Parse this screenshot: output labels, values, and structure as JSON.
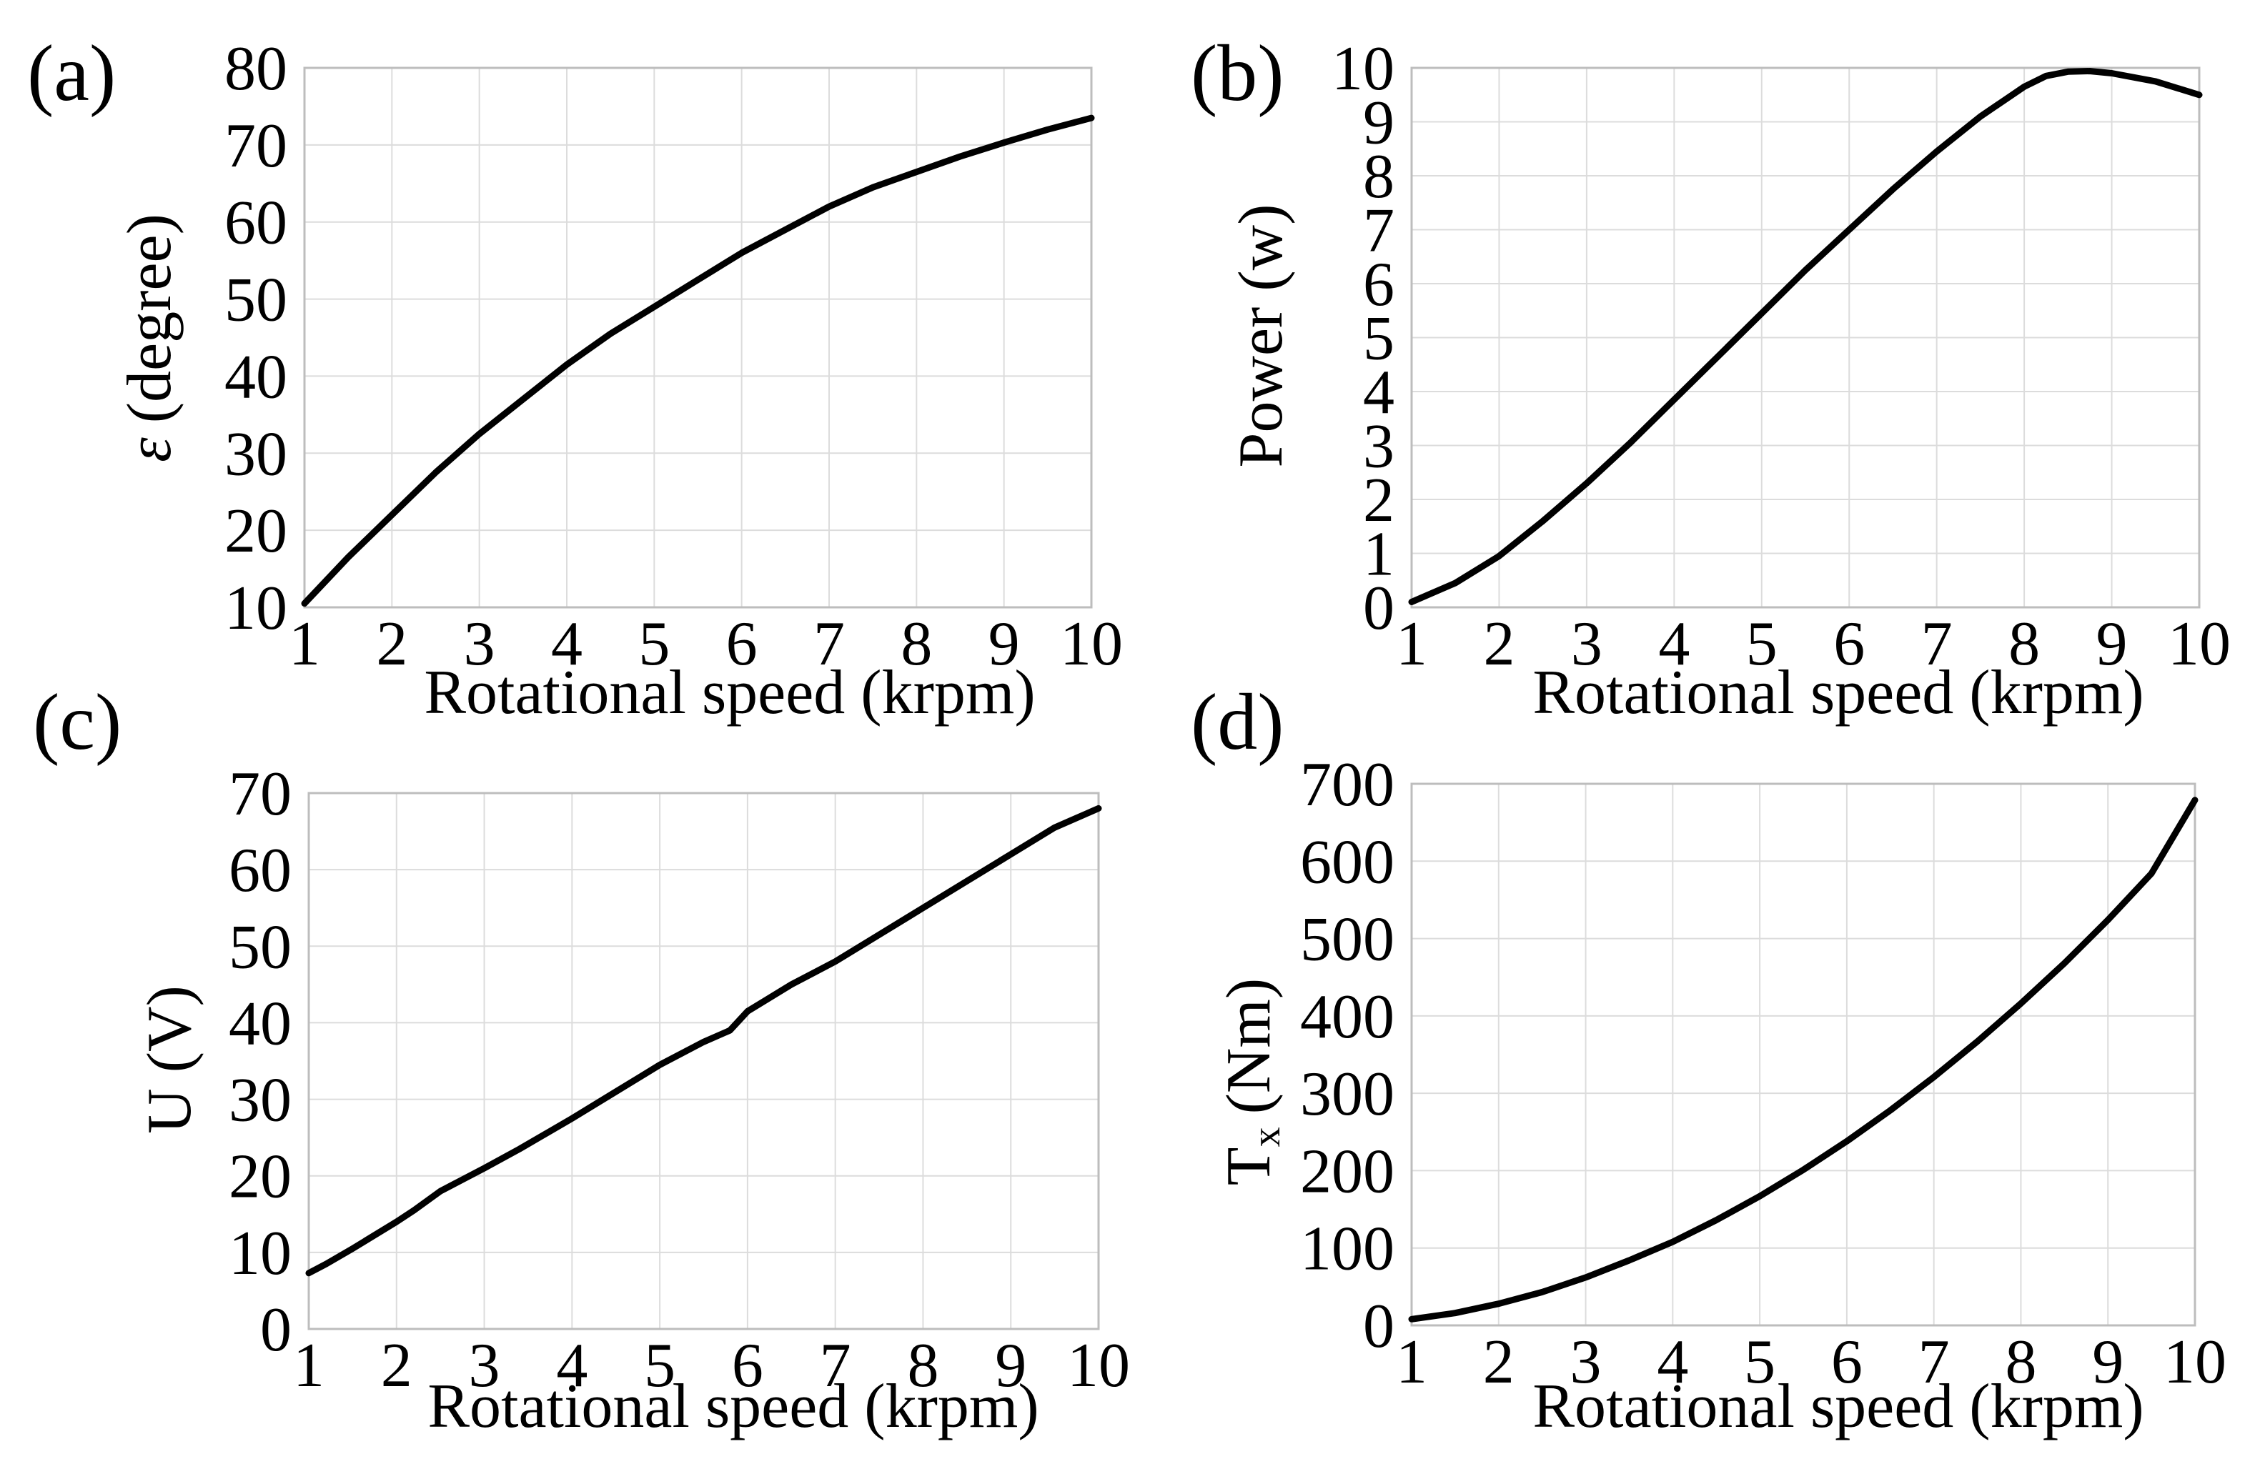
{
  "chart_data": [
    {
      "panel": "(a)",
      "type": "line",
      "title": "",
      "xlabel": "Rotational speed (krpm)",
      "ylabel_symbol": "ε",
      "ylabel": "(degree)",
      "xlim": [
        1,
        10
      ],
      "ylim": [
        10,
        80
      ],
      "xticks": [
        "1",
        "2",
        "3",
        "4",
        "5",
        "6",
        "7",
        "8",
        "9",
        "10"
      ],
      "yticks": [
        "10",
        "20",
        "30",
        "40",
        "50",
        "60",
        "70",
        "80"
      ],
      "grid": true,
      "series": [
        {
          "name": "epsilon",
          "x": [
            1,
            1.5,
            2,
            2.5,
            3,
            3.5,
            4,
            4.5,
            5,
            5.5,
            6,
            6.5,
            7,
            7.5,
            8,
            8.5,
            9,
            9.5,
            10
          ],
          "y": [
            10.5,
            16.5,
            22,
            27.5,
            32.5,
            37,
            41.5,
            45.5,
            49,
            52.5,
            56,
            59,
            62,
            64.5,
            66.5,
            68.5,
            70.3,
            72,
            73.5
          ]
        }
      ]
    },
    {
      "panel": "(b)",
      "type": "line",
      "title": "",
      "xlabel": "Rotational speed (krpm)",
      "ylabel": "Power (w)",
      "xlim": [
        1,
        10
      ],
      "ylim": [
        0,
        10
      ],
      "xticks": [
        "1",
        "2",
        "3",
        "4",
        "5",
        "6",
        "7",
        "8",
        "9",
        "10"
      ],
      "yticks": [
        "0",
        "1",
        "2",
        "3",
        "4",
        "5",
        "6",
        "7",
        "8",
        "9",
        "10"
      ],
      "grid": true,
      "series": [
        {
          "name": "power",
          "x": [
            1,
            1.5,
            2,
            2.5,
            3,
            3.5,
            4,
            4.5,
            5,
            5.5,
            6,
            6.5,
            7,
            7.5,
            8,
            8.25,
            8.5,
            8.75,
            9,
            9.5,
            10
          ],
          "y": [
            0.1,
            0.45,
            0.95,
            1.6,
            2.3,
            3.05,
            3.85,
            4.65,
            5.45,
            6.25,
            7.0,
            7.75,
            8.45,
            9.1,
            9.65,
            9.85,
            9.93,
            9.94,
            9.9,
            9.75,
            9.5
          ]
        }
      ]
    },
    {
      "panel": "(c)",
      "type": "line",
      "title": "",
      "xlabel": "Rotational speed (krpm)",
      "ylabel": "U (V)",
      "xlim": [
        1,
        10
      ],
      "ylim": [
        0,
        70
      ],
      "xticks": [
        "1",
        "2",
        "3",
        "4",
        "5",
        "6",
        "7",
        "8",
        "9",
        "10"
      ],
      "yticks": [
        "0",
        "10",
        "20",
        "30",
        "40",
        "50",
        "60",
        "70"
      ],
      "grid": true,
      "series": [
        {
          "name": "voltage",
          "x": [
            1,
            1.2,
            1.5,
            2,
            2.2,
            2.5,
            3,
            3.4,
            4,
            4.5,
            5,
            5.5,
            5.8,
            6,
            6.5,
            7,
            7.5,
            8,
            8.5,
            9,
            9.5,
            10
          ],
          "y": [
            7.3,
            8.5,
            10.5,
            14,
            15.5,
            18,
            21,
            23.5,
            27.5,
            31,
            34.5,
            37.5,
            39,
            41.5,
            45,
            48,
            51.5,
            55,
            58.5,
            62,
            65.5,
            68
          ]
        }
      ]
    },
    {
      "panel": "(d)",
      "type": "line",
      "title": "",
      "xlabel": "Rotational speed (krpm)",
      "ylabel_main": "T",
      "ylabel_sub": "x",
      "ylabel_unit": "(Nm)",
      "xlim": [
        1,
        10
      ],
      "ylim": [
        0,
        700
      ],
      "xticks": [
        "1",
        "2",
        "3",
        "4",
        "5",
        "6",
        "7",
        "8",
        "9",
        "10"
      ],
      "yticks": [
        "0",
        "100",
        "200",
        "300",
        "400",
        "500",
        "600",
        "700"
      ],
      "grid": true,
      "series": [
        {
          "name": "torque",
          "x": [
            1,
            1.5,
            2,
            2.5,
            3,
            3.5,
            4,
            4.5,
            5,
            5.5,
            6,
            6.5,
            7,
            7.5,
            8,
            8.5,
            9,
            9.5,
            10
          ],
          "y": [
            8,
            16,
            28,
            43,
            62,
            84,
            108,
            136,
            167,
            201,
            238,
            278,
            321,
            367,
            416,
            468,
            524,
            584,
            679
          ]
        }
      ]
    }
  ]
}
